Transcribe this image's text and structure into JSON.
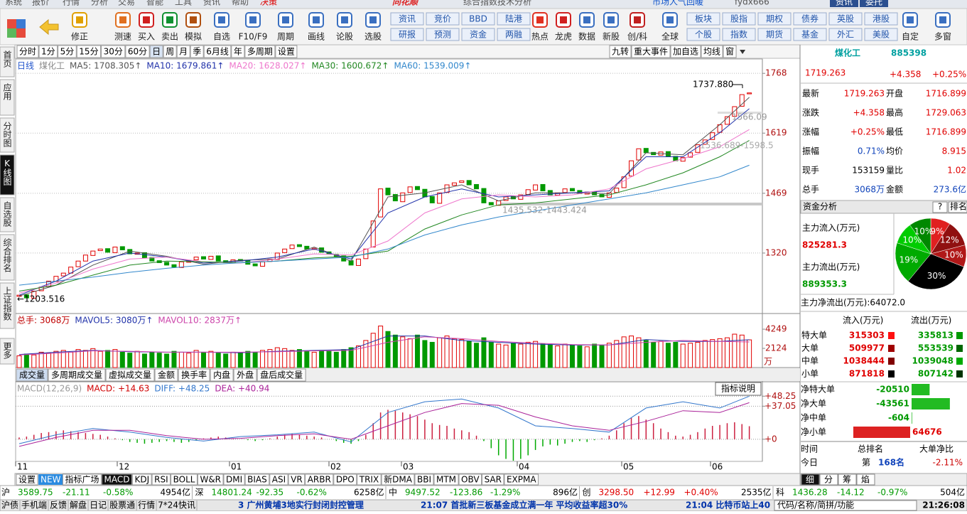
{
  "menu": [
    "系统",
    "报价",
    "行情",
    "分析",
    "交易",
    "智能",
    "工具",
    "资讯",
    "帮助",
    "决策"
  ],
  "app_title": "同花顺",
  "window_title": "综合指数技术分析",
  "top_right": {
    "notice": "市场人气回暖",
    "user": "fydx666",
    "buttons": [
      "资讯",
      "委托"
    ]
  },
  "toolbar": [
    "修正",
    "测速",
    "买入",
    "卖出",
    "模拟",
    "自选",
    "F10/F9",
    "周期",
    "画线",
    "论股",
    "选股",
    [
      "资讯",
      "研报"
    ],
    [
      "竞价",
      "预测"
    ],
    [
      "BBD",
      "资金"
    ],
    [
      "陆港",
      "两融"
    ],
    "热点",
    "龙虎",
    "数据",
    "新股",
    "创/科",
    "全球",
    [
      "板块",
      "个股"
    ],
    [
      "股指",
      "指数"
    ],
    [
      "期权",
      "期货"
    ],
    [
      "债券",
      "基金"
    ],
    [
      "英股",
      "外汇"
    ],
    [
      "港股",
      "美股"
    ],
    "自定",
    "多窗"
  ],
  "side_tabs": [
    "首页",
    "应用",
    "分时图",
    "K线图",
    "自选股",
    "综合排名",
    "上证指数",
    "更多"
  ],
  "active_side_tab": 3,
  "periods": [
    "分时",
    "1分",
    "5分",
    "15分",
    "30分",
    "60分",
    "日",
    "周",
    "月",
    "季",
    "6月线",
    "年",
    "多周期",
    "设置"
  ],
  "active_period": 6,
  "chart_tools": [
    "九转",
    "重大事件",
    "加自选",
    "均线",
    "窗"
  ],
  "chart_data": [
    {
      "type": "candlestick",
      "period_label": "日线",
      "name": "煤化工",
      "open": [
        1212,
        1216,
        1207,
        1226,
        1236,
        1249,
        1263,
        1270,
        1286,
        1300,
        1314,
        1326,
        1331,
        1321,
        1336,
        1329,
        1317,
        1321,
        1309,
        1301,
        1297,
        1291,
        1284,
        1297,
        1303,
        1311,
        1304,
        1313,
        1301,
        1295,
        1304,
        1301,
        1293,
        1287,
        1299,
        1304,
        1321,
        1331,
        1341,
        1337,
        1329,
        1333,
        1323,
        1317,
        1313,
        1301,
        1289,
        1306,
        1335,
        1410,
        1482,
        1466,
        1448,
        1471,
        1486,
        1479,
        1461,
        1444,
        1471,
        1489,
        1496,
        1501,
        1491,
        1481,
        1446,
        1439,
        1451,
        1461,
        1454,
        1466,
        1477,
        1491,
        1476,
        1464,
        1471,
        1481,
        1476,
        1467,
        1473,
        1466,
        1459,
        1471,
        1483,
        1512,
        1552,
        1581,
        1571,
        1564,
        1573,
        1561,
        1549,
        1559,
        1571,
        1591,
        1603,
        1621,
        1641,
        1661,
        1686,
        1716.899
      ],
      "close": [
        1215,
        1208,
        1225,
        1235,
        1250,
        1262,
        1270,
        1285,
        1300,
        1315,
        1325,
        1330,
        1322,
        1335,
        1328,
        1318,
        1320,
        1308,
        1300,
        1296,
        1290,
        1285,
        1298,
        1302,
        1310,
        1305,
        1312,
        1300,
        1296,
        1303,
        1300,
        1292,
        1288,
        1298,
        1305,
        1320,
        1330,
        1340,
        1336,
        1330,
        1332,
        1322,
        1318,
        1312,
        1300,
        1290,
        1305,
        1330,
        1400,
        1480,
        1465,
        1450,
        1470,
        1485,
        1478,
        1460,
        1445,
        1470,
        1490,
        1495,
        1500,
        1490,
        1480,
        1445,
        1440,
        1450,
        1460,
        1455,
        1465,
        1478,
        1490,
        1475,
        1465,
        1470,
        1480,
        1475,
        1468,
        1472,
        1465,
        1460,
        1470,
        1482,
        1510,
        1550,
        1580,
        1570,
        1565,
        1572,
        1560,
        1550,
        1558,
        1570,
        1590,
        1602,
        1620,
        1640,
        1660,
        1685,
        1715,
        1719.263
      ],
      "ma_x": [
        0,
        5,
        10,
        15,
        20,
        25,
        30,
        35,
        40,
        45,
        50,
        55,
        60,
        65,
        70,
        75,
        80,
        85,
        90,
        95,
        99
      ],
      "series": [
        {
          "name": "MA5: 1708.305↑",
          "color": "#555555",
          "values": [
            1213,
            1240,
            1290,
            1325,
            1312,
            1292,
            1302,
            1305,
            1335,
            1300,
            1460,
            1470,
            1490,
            1450,
            1470,
            1470,
            1468,
            1570,
            1565,
            1640,
            1708.305
          ]
        },
        {
          "name": "MA10: 1679.861↑",
          "color": "#2233aa",
          "values": [
            1215,
            1250,
            1300,
            1320,
            1310,
            1295,
            1300,
            1310,
            1330,
            1305,
            1420,
            1460,
            1480,
            1460,
            1465,
            1470,
            1475,
            1560,
            1560,
            1620,
            1679.861
          ]
        },
        {
          "name": "MA20: 1628.027↑",
          "color": "#ee77cc",
          "values": [
            1220,
            1245,
            1280,
            1305,
            1310,
            1298,
            1295,
            1305,
            1318,
            1315,
            1350,
            1420,
            1455,
            1465,
            1460,
            1465,
            1480,
            1530,
            1555,
            1585,
            1628.027
          ]
        },
        {
          "name": "MA30: 1600.672↑",
          "color": "#228822",
          "values": [
            1225,
            1240,
            1265,
            1290,
            1300,
            1298,
            1296,
            1300,
            1308,
            1312,
            1325,
            1380,
            1415,
            1440,
            1445,
            1455,
            1465,
            1490,
            1520,
            1560,
            1600.672
          ]
        },
        {
          "name": "MA60: 1539.009↑",
          "color": "#3388cc",
          "values": [
            1240,
            1250,
            1260,
            1272,
            1282,
            1290,
            1296,
            1300,
            1305,
            1310,
            1330,
            1365,
            1390,
            1410,
            1425,
            1440,
            1455,
            1470,
            1490,
            1510,
            1539.009
          ]
        }
      ],
      "ylim": [
        1171,
        1802
      ],
      "yticks": [
        1320,
        1469,
        1619,
        1768
      ],
      "annotations": [
        "1737.880",
        "←1203.516",
        "1435.532-1443.424",
        "1566.09",
        "1536.689-1598.5"
      ],
      "x_labels": [
        "11",
        "12",
        "01",
        "02",
        "03",
        "04",
        "05",
        "06"
      ]
    },
    {
      "type": "volume",
      "label": "总手: 3068万",
      "values": [
        1300,
        1500,
        1400,
        1700,
        1600,
        1800,
        1900,
        1700,
        2000,
        1900,
        2100,
        1800,
        1900,
        2000,
        1700,
        1600,
        1800,
        1500,
        1700,
        1600,
        1500,
        1800,
        1700,
        1600,
        1900,
        1700,
        1800,
        1600,
        1500,
        1700,
        1600,
        1800,
        1700,
        1900,
        2000,
        2200,
        2100,
        1900,
        2000,
        1800,
        1700,
        1900,
        1800,
        1700,
        2000,
        2200,
        2400,
        3000,
        3800,
        4600,
        4000,
        3600,
        3400,
        3200,
        3600,
        3000,
        2800,
        3300,
        3500,
        3200,
        3100,
        2900,
        2700,
        3300,
        2800,
        2600,
        2500,
        2700,
        2600,
        2800,
        2900,
        2600,
        2500,
        2400,
        2600,
        2500,
        2400,
        2300,
        2600,
        2500,
        2700,
        3000,
        3400,
        3500,
        3300,
        3000,
        2800,
        2900,
        2700,
        2800,
        2600,
        2700,
        2800,
        3000,
        3100,
        3200,
        3300,
        3700,
        3600,
        3068
      ],
      "line_x": [
        0,
        5,
        10,
        15,
        20,
        25,
        30,
        35,
        40,
        45,
        50,
        55,
        60,
        65,
        70,
        75,
        80,
        85,
        90,
        95,
        99
      ],
      "series": [
        {
          "name": "MAVOL5: 3080万↑",
          "color": "#2233aa",
          "values": [
            1450,
            1700,
            1900,
            1750,
            1700,
            1700,
            1650,
            1800,
            1900,
            2000,
            3500,
            3500,
            3000,
            2800,
            2600,
            2500,
            2500,
            3100,
            2900,
            2900,
            3080
          ]
        },
        {
          "name": "MAVOL10: 2837万↑",
          "color": "#cc44aa",
          "values": [
            1400,
            1600,
            1850,
            1800,
            1700,
            1700,
            1700,
            1750,
            1850,
            1900,
            2800,
            3400,
            3200,
            2900,
            2700,
            2550,
            2500,
            2800,
            3000,
            2900,
            2837
          ]
        }
      ],
      "ylim": [
        0,
        5750
      ],
      "yticks": [
        4249,
        2124
      ],
      "unit": "万",
      "tabs": [
        "成交量",
        "多周期成交量",
        "虚拟成交量",
        "金额",
        "换手率",
        "内盘",
        "外盘",
        "盘后成交量"
      ],
      "active_tab": 0
    },
    {
      "type": "macd",
      "label": "MACD(12,26,9)",
      "value_label": "MACD: +14.63",
      "help": "指标说明",
      "values": [
        2,
        3,
        5,
        7,
        8,
        9,
        10,
        9,
        8,
        7,
        6,
        5,
        3,
        1,
        -1,
        -3,
        -4,
        -5,
        -4,
        -3,
        -2,
        -3,
        -4,
        -3,
        -1,
        1,
        2,
        3,
        2,
        1,
        0,
        -1,
        -2,
        -1,
        1,
        3,
        5,
        6,
        5,
        4,
        3,
        2,
        0,
        -2,
        -4,
        -5,
        -2,
        5,
        18,
        30,
        33,
        32,
        30,
        28,
        26,
        22,
        18,
        16,
        15,
        12,
        10,
        8,
        4,
        -2,
        -10,
        -18,
        -22,
        -24,
        -22,
        -18,
        -12,
        -8,
        -6,
        -7,
        -5,
        -3,
        -2,
        -3,
        -1,
        1,
        4,
        10,
        18,
        24,
        26,
        22,
        18,
        12,
        8,
        4,
        3,
        5,
        8,
        12,
        15,
        16,
        18,
        19,
        17,
        14.63
      ],
      "line_x": [
        0,
        5,
        10,
        15,
        20,
        25,
        30,
        35,
        40,
        45,
        50,
        55,
        60,
        65,
        70,
        75,
        80,
        85,
        90,
        95,
        99
      ],
      "series": [
        {
          "name": "DIFF: +48.25",
          "color": "#3377cc",
          "values": [
            -5,
            5,
            12,
            8,
            2,
            -2,
            3,
            5,
            8,
            -3,
            30,
            42,
            45,
            35,
            15,
            12,
            8,
            35,
            42,
            35,
            48.25
          ]
        },
        {
          "name": "DEA: +40.94",
          "color": "#aa2299",
          "values": [
            -8,
            2,
            10,
            10,
            4,
            0,
            1,
            4,
            6,
            0,
            15,
            30,
            40,
            38,
            25,
            15,
            10,
            20,
            32,
            30,
            40.94
          ]
        }
      ],
      "ylim": [
        -24,
        62
      ],
      "yticks": [
        {
          "value": 48.25,
          "label": "+48.25"
        },
        {
          "value": 37.05,
          "label": "+37.05"
        },
        {
          "value": 0,
          "label": "+0"
        }
      ]
    },
    {
      "type": "pie",
      "values": [
        9,
        12,
        10,
        30,
        19,
        10,
        10
      ],
      "value_labels": [
        "9%",
        "12%",
        "10%",
        "30%",
        "19%",
        "10%",
        "10%"
      ],
      "colors": [
        "#e02020",
        "#901010",
        "#b01818",
        "#000000",
        "#00aa00",
        "#00cc00",
        "#008800"
      ]
    },
    {
      "type": "hbar",
      "categories": [
        "净特大单",
        "净大单",
        "净中单",
        "净小单"
      ],
      "values": [
        -20510,
        -43561,
        -604,
        64676
      ]
    }
  ],
  "indicator_tabs": [
    "设置",
    "NEW",
    "指标广场",
    "MACD",
    "KDJ",
    "RSI",
    "BOLL",
    "W&R",
    "DMI",
    "BIAS",
    "ASI",
    "VR",
    "ARBR",
    "DPO",
    "TRIX",
    "新DMA",
    "BBI",
    "MTM",
    "OBV",
    "SAR",
    "EXPMA"
  ],
  "active_indicator": 3,
  "quote": {
    "name": "煤化工",
    "code": "885398",
    "price": "1719.263",
    "change": "+4.358",
    "pct": "+0.25%",
    "rows": [
      [
        "最新",
        "1719.263",
        "开盘",
        "1716.899"
      ],
      [
        "涨跌",
        "+4.358",
        "最高",
        "1729.063"
      ],
      [
        "涨幅",
        "+0.25%",
        "最低",
        "1716.899"
      ],
      [
        "振幅",
        "0.71%",
        "均价",
        "8.915"
      ],
      [
        "现手",
        "153159",
        "量比",
        "1.02"
      ],
      [
        "总手",
        "3068万",
        "金额",
        "273.6亿"
      ]
    ]
  },
  "fund": {
    "title": "资金分析",
    "help": "?",
    "rank": "排名",
    "inflow_label": "主力流入(万元)",
    "inflow": "825281.3",
    "outflow_label": "主力流出(万元)",
    "outflow": "889353.3",
    "net": "主力净流出(万元):64072.0",
    "flow_header": [
      "流入(万元)",
      "流出(万元)"
    ],
    "flow_rows": [
      [
        "特大单",
        "315303",
        "335813"
      ],
      [
        "大单",
        "509977",
        "553539"
      ],
      [
        "中单",
        "1038444",
        "1039048"
      ],
      [
        "小单",
        "871818",
        "807142"
      ]
    ],
    "rank_header": [
      "时间",
      "总排名",
      "大单净比"
    ],
    "rank_row": [
      "今日",
      "第",
      "168名",
      "-2.11%"
    ],
    "tabs": [
      "细",
      "分",
      "筹",
      "焰"
    ]
  },
  "indices": [
    {
      "name": "沪",
      "price": "3589.75",
      "change": "-21.11",
      "pct": "-0.58%",
      "amount": "4954亿"
    },
    {
      "name": "深",
      "price": "14801.24",
      "change": "-92.35",
      "pct": "-0.62%",
      "amount": "6258亿"
    },
    {
      "name": "中",
      "price": "9497.52",
      "change": "-123.86",
      "pct": "-1.29%",
      "amount": "896亿"
    },
    {
      "name": "创",
      "price": "3298.50",
      "change": "+12.99",
      "pct": "+0.40%",
      "amount": "2535亿"
    },
    {
      "name": "科",
      "price": "1436.28",
      "change": "-14.12",
      "pct": "-0.97%",
      "amount": "504亿"
    }
  ],
  "status": {
    "items": [
      "沪债",
      "手机端",
      "反馈",
      "解盘",
      "日记",
      "股票通",
      "行情",
      "7*24快讯"
    ],
    "news": [
      "3 广州黄埔3地实行封闭封控管理",
      "21:07 首批新三板基金成立满一年 平均收益率超30%",
      "21:04 比特币站上40"
    ],
    "search": "代码/名称/简拼/功能",
    "clock": "21:26:08"
  }
}
